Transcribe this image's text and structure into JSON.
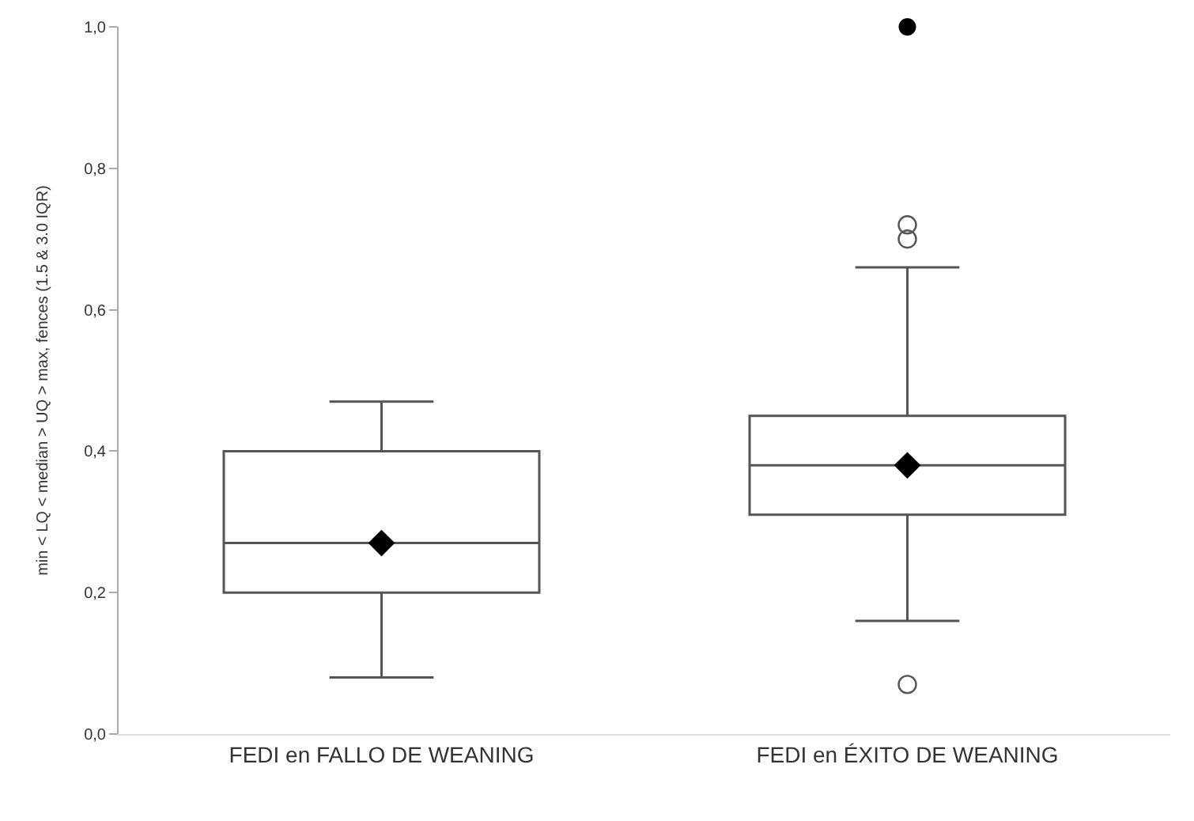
{
  "chart_data": {
    "type": "box",
    "ylabel": "min < LQ < median > UQ > max, fences (1.5 & 3.0 IQR)",
    "categories": [
      "FEDI en FALLO DE WEANING",
      "FEDI en ÉXITO DE WEANING"
    ],
    "boxes": [
      {
        "low": 0.08,
        "q1": 0.2,
        "median": 0.27,
        "q3": 0.4,
        "high": 0.47,
        "mean": 0.27
      },
      {
        "low": 0.16,
        "q1": 0.31,
        "median": 0.38,
        "q3": 0.45,
        "high": 0.66,
        "mean": 0.38,
        "outliers": [
          0.72,
          0.7,
          0.07
        ]
      }
    ],
    "series": [
      {
        "type": "scatter",
        "color": "#000000",
        "x": [
          "FEDI en ÉXITO DE WEANING"
        ],
        "values": [
          1.0
        ]
      }
    ],
    "ylim": [
      0,
      1.0
    ],
    "yticks": [
      {
        "value": 0,
        "label": "0,0"
      },
      {
        "value": 0.2,
        "label": "0,2"
      },
      {
        "value": 0.4,
        "label": "0,4"
      },
      {
        "value": 0.6,
        "label": "0,6"
      },
      {
        "value": 0.8,
        "label": "0,8"
      },
      {
        "value": 1.0,
        "label": "1,0"
      }
    ]
  }
}
